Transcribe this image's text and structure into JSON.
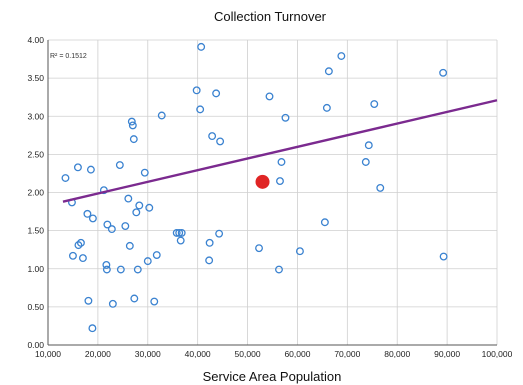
{
  "chart_data": {
    "type": "scatter",
    "title": "Collection Turnover",
    "xlabel": "Service Area Population",
    "ylabel": "",
    "xlim": [
      10000,
      100000
    ],
    "ylim": [
      0,
      4
    ],
    "xticks": [
      10000,
      20000,
      30000,
      40000,
      50000,
      60000,
      70000,
      80000,
      90000,
      100000
    ],
    "xtick_labels": [
      "10,000",
      "20,000",
      "30,000",
      "40,000",
      "50,000",
      "60,000",
      "70,000",
      "80,000",
      "90,000",
      "100,000"
    ],
    "yticks": [
      0,
      0.5,
      1,
      1.5,
      2,
      2.5,
      3,
      3.5,
      4
    ],
    "ytick_labels": [
      "0.00",
      "0.50",
      "1.00",
      "1.50",
      "2.00",
      "2.50",
      "3.00",
      "3.50",
      "4.00"
    ],
    "grid": true,
    "annotation": "R² = 0.1512",
    "colors": {
      "points": "#3a82d0",
      "trendline": "#7b2a8f",
      "highlight": "#e02525"
    },
    "series": [
      {
        "values": [
          [
            13500,
            2.19
          ],
          [
            14800,
            1.87
          ],
          [
            15000,
            1.17
          ],
          [
            16000,
            2.33
          ],
          [
            16100,
            1.31
          ],
          [
            16600,
            1.34
          ],
          [
            17000,
            1.14
          ],
          [
            17900,
            1.72
          ],
          [
            18100,
            0.58
          ],
          [
            18600,
            2.3
          ],
          [
            18900,
            0.22
          ],
          [
            19000,
            1.66
          ],
          [
            21200,
            2.03
          ],
          [
            21700,
            1.05
          ],
          [
            21800,
            0.99
          ],
          [
            21900,
            1.58
          ],
          [
            22800,
            1.52
          ],
          [
            23000,
            0.54
          ],
          [
            24400,
            2.36
          ],
          [
            24600,
            0.99
          ],
          [
            25500,
            1.56
          ],
          [
            26100,
            1.92
          ],
          [
            26400,
            1.3
          ],
          [
            26800,
            2.93
          ],
          [
            27000,
            2.88
          ],
          [
            27200,
            2.7
          ],
          [
            27300,
            0.61
          ],
          [
            27700,
            1.74
          ],
          [
            28000,
            0.99
          ],
          [
            28300,
            1.83
          ],
          [
            29400,
            2.26
          ],
          [
            30000,
            1.1
          ],
          [
            30300,
            1.8
          ],
          [
            31300,
            0.57
          ],
          [
            31800,
            1.18
          ],
          [
            32800,
            3.01
          ],
          [
            35800,
            1.47
          ],
          [
            36300,
            1.47
          ],
          [
            36600,
            1.37
          ],
          [
            36800,
            1.47
          ],
          [
            39800,
            3.34
          ],
          [
            40500,
            3.09
          ],
          [
            40700,
            3.91
          ],
          [
            42300,
            1.11
          ],
          [
            42400,
            1.34
          ],
          [
            42900,
            2.74
          ],
          [
            43700,
            3.3
          ],
          [
            44300,
            1.46
          ],
          [
            44500,
            2.67
          ],
          [
            52300,
            1.27
          ],
          [
            54400,
            3.26
          ],
          [
            56300,
            0.99
          ],
          [
            56500,
            2.15
          ],
          [
            56800,
            2.4
          ],
          [
            57600,
            2.98
          ],
          [
            60500,
            1.23
          ],
          [
            65500,
            1.61
          ],
          [
            65900,
            3.11
          ],
          [
            66300,
            3.59
          ],
          [
            68800,
            3.79
          ],
          [
            73700,
            2.4
          ],
          [
            74300,
            2.62
          ],
          [
            75400,
            3.16
          ],
          [
            76600,
            2.06
          ],
          [
            89200,
            3.57
          ],
          [
            89300,
            1.16
          ]
        ]
      },
      {
        "values": [
          [
            53000,
            2.14
          ]
        ]
      }
    ],
    "trendline": [
      [
        13000,
        1.88
      ],
      [
        100000,
        3.21
      ]
    ]
  }
}
